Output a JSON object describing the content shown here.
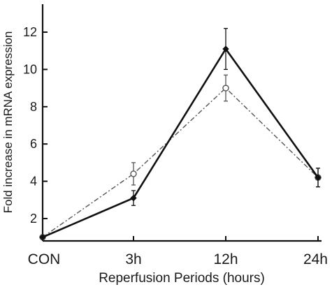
{
  "chart_data": {
    "type": "line",
    "title": "",
    "xlabel": "Reperfusion Periods (hours)",
    "ylabel": "Fold increase in mRNA expression",
    "categories": [
      "CON",
      "3h",
      "12h",
      "24h"
    ],
    "yticks": [
      2,
      4,
      6,
      8,
      10,
      12
    ],
    "ylim": [
      0.8,
      13.5
    ],
    "grid": false,
    "legend": "none",
    "series": [
      {
        "style": "solid",
        "marker": "filled-diamond",
        "color": "#111111",
        "values": [
          1.0,
          3.1,
          11.1,
          4.2
        ],
        "errors": [
          0.1,
          0.4,
          1.1,
          0.5
        ]
      },
      {
        "style": "dash-dot",
        "marker": "open-circle",
        "color": "#555555",
        "values": [
          1.0,
          4.4,
          9.0,
          4.2
        ],
        "errors": [
          0.1,
          0.6,
          0.7,
          0.5
        ]
      }
    ]
  }
}
